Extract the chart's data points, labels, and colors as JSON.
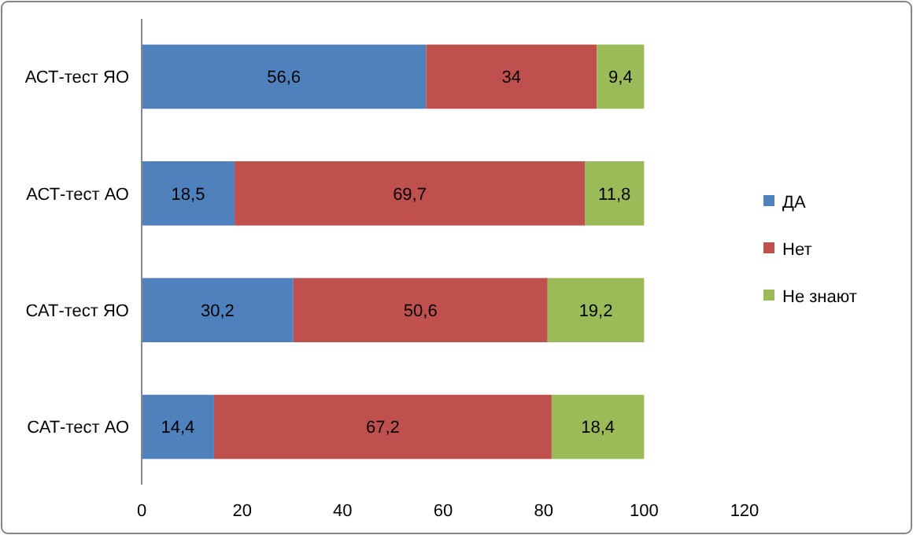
{
  "chart_data": {
    "type": "bar",
    "orientation": "horizontal",
    "stacked": true,
    "categories": [
      "АСТ-тест ЯО",
      "АСТ-тест АО",
      "САТ-тест ЯО",
      "САТ-тест АО"
    ],
    "series": [
      {
        "name": "ДА",
        "color": "#4f81bd",
        "values": [
          56.6,
          18.5,
          30.2,
          14.4
        ],
        "value_labels": [
          "56,6",
          "18,5",
          "30,2",
          "14,4"
        ]
      },
      {
        "name": "Нет",
        "color": "#c0504d",
        "values": [
          34,
          69.7,
          50.6,
          67.2
        ],
        "value_labels": [
          "34",
          "69,7",
          "50,6",
          "67,2"
        ]
      },
      {
        "name": "Не знают",
        "color": "#9bbb59",
        "values": [
          9.4,
          11.8,
          19.2,
          18.4
        ],
        "value_labels": [
          "9,4",
          "11,8",
          "19,2",
          "18,4"
        ]
      }
    ],
    "xlim": [
      0,
      120
    ],
    "xticks": [
      0,
      20,
      40,
      60,
      80,
      100,
      120
    ],
    "grid": false,
    "legend": "right"
  }
}
